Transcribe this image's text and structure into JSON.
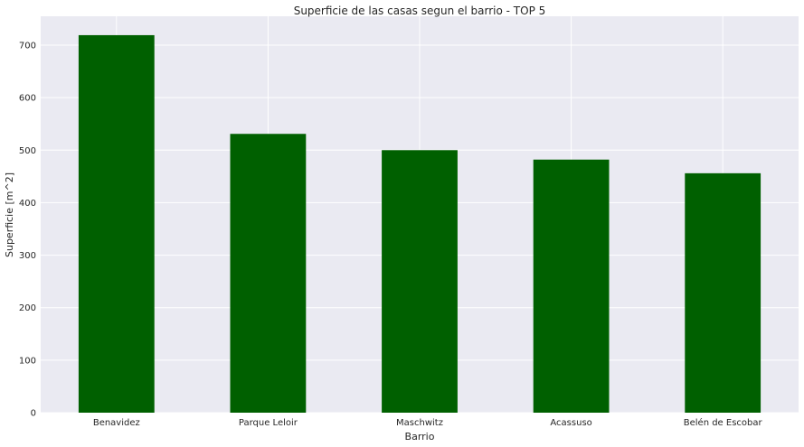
{
  "chart_data": {
    "type": "bar",
    "title": "Superficie de las casas segun el barrio - TOP 5",
    "xlabel": "Barrio",
    "ylabel": "Superficie [m^2]",
    "categories": [
      "Benavidez",
      "Parque Leloir",
      "Maschwitz",
      "Acassuso",
      "Belén de Escobar"
    ],
    "values": [
      719,
      531,
      500,
      482,
      456
    ],
    "ylim": [
      0,
      755
    ],
    "yticks": [
      "0",
      "100",
      "200",
      "300",
      "400",
      "500",
      "600",
      "700"
    ],
    "bar_color": "#006000",
    "plot_background": "#eaeaf2",
    "grid": true,
    "legend": false
  }
}
